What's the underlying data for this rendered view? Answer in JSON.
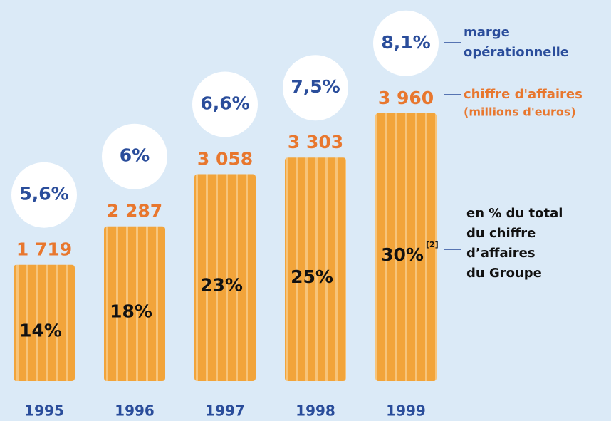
{
  "chart_data": {
    "type": "bar",
    "categories": [
      "1995",
      "1996",
      "1997",
      "1998",
      "1999"
    ],
    "series": [
      {
        "name": [
          "chiffre d'affaires",
          "(millions d'euros)"
        ],
        "color": "#f2a43a",
        "label_color": "#e8772e",
        "values": [
          1719,
          2287,
          3058,
          3303,
          3960
        ],
        "value_labels": [
          "1 719",
          "2 287",
          "3 058",
          "3 303",
          "3 960"
        ]
      },
      {
        "name": [
          "marge",
          "opérationnelle"
        ],
        "color": "#2a4d9b",
        "values": [
          5.6,
          6,
          6.6,
          7.5,
          8.1
        ],
        "value_labels": [
          "5,6%",
          "6%",
          "6,6%",
          "7,5%",
          "8,1%"
        ]
      },
      {
        "name": [
          "en % du total",
          "du chiffre",
          "d’affaires",
          "du Groupe"
        ],
        "note": "[2]",
        "color": "#111111",
        "values": [
          14,
          18,
          23,
          25,
          30
        ],
        "value_labels": [
          "14%",
          "18%",
          "23%",
          "25%",
          "30%"
        ]
      }
    ]
  }
}
